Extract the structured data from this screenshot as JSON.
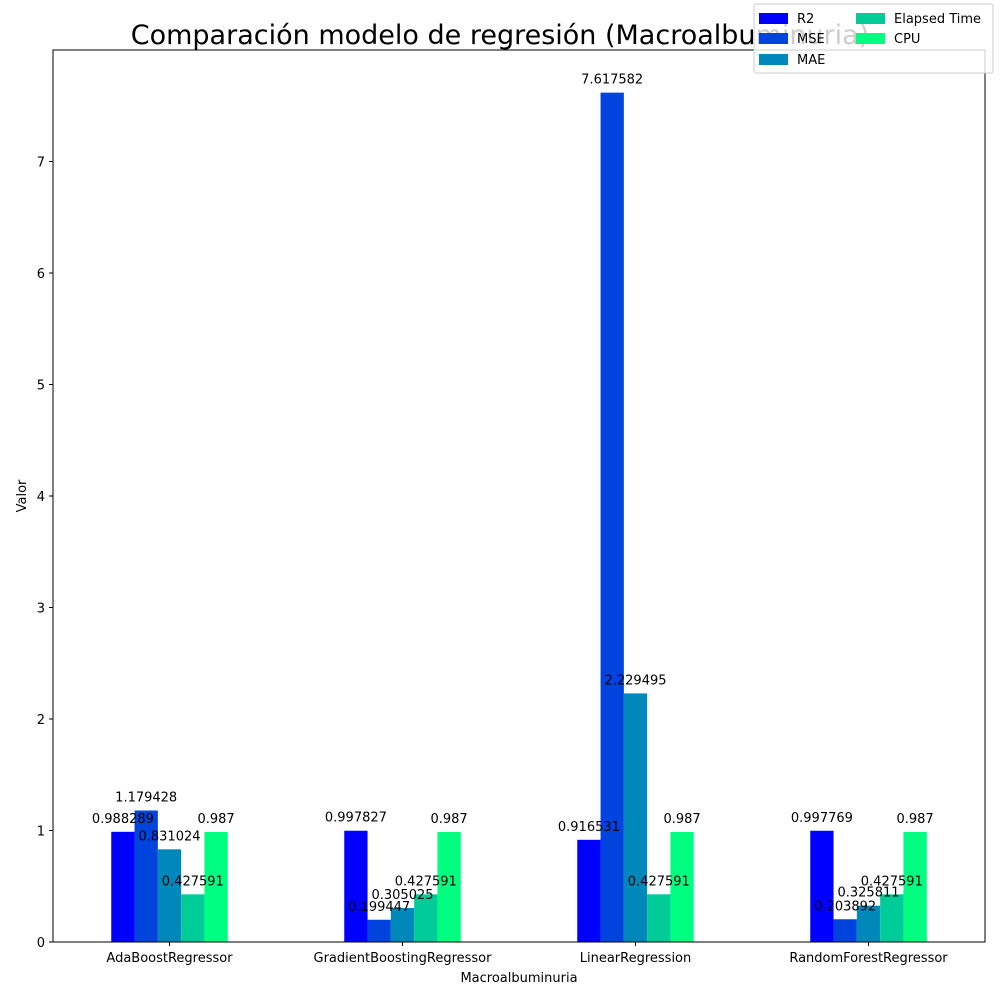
{
  "chart_data": {
    "type": "bar",
    "title": "Comparación modelo de regresión (Macroalbuminuria)",
    "xlabel": "Macroalbuminuria",
    "ylabel": "Valor",
    "categories": [
      "AdaBoostRegressor",
      "GradientBoostingRegressor",
      "LinearRegression",
      "RandomForestRegressor"
    ],
    "series": [
      {
        "name": "R2",
        "color": "#0000ff",
        "values": [
          0.988289,
          0.997827,
          0.916531,
          0.997769
        ],
        "labels": [
          "0.988289",
          "0.997827",
          "0.916531",
          "0.997769"
        ]
      },
      {
        "name": "MSE",
        "color": "#0044dd",
        "values": [
          1.179428,
          0.199447,
          7.617582,
          0.203892
        ],
        "labels": [
          "1.179428",
          "0.199447",
          "7.617582",
          "0.203892"
        ]
      },
      {
        "name": "MAE",
        "color": "#0088bb",
        "values": [
          0.831024,
          0.305025,
          2.229495,
          0.325811
        ],
        "labels": [
          "0.831024",
          "0.305025",
          "2.229495",
          "0.325811"
        ]
      },
      {
        "name": "Elapsed Time",
        "color": "#00cc99",
        "values": [
          0.427591,
          0.427591,
          0.427591,
          0.427591
        ],
        "labels": [
          "0.427591",
          "0.427591",
          "0.427591",
          "0.427591"
        ]
      },
      {
        "name": "CPU",
        "color": "#00ff80",
        "values": [
          0.987,
          0.987,
          0.987,
          0.987
        ],
        "labels": [
          "0.987",
          "0.987",
          "0.987",
          "0.987"
        ]
      }
    ],
    "ylim": [
      0,
      8.0
    ],
    "yticks": [
      0,
      1,
      2,
      3,
      4,
      5,
      6,
      7
    ],
    "grid": false,
    "legend_position": "top-right"
  }
}
